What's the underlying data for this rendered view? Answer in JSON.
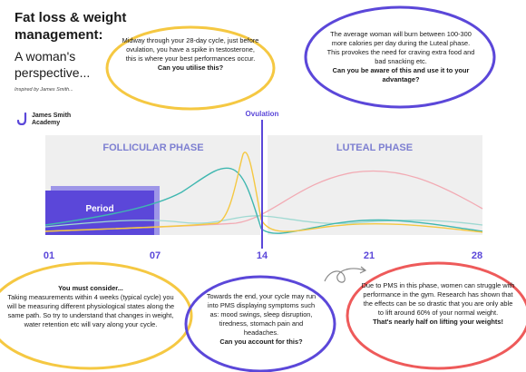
{
  "header": {
    "title_line1": "Fat loss & weight",
    "title_line2": "management:",
    "subtitle": "A woman's perspective...",
    "inspired": "Inspired by James Smith..."
  },
  "logo": {
    "line1": "James Smith",
    "line2": "Academy"
  },
  "bubbles": {
    "yellow": {
      "text": "Midway through your 28-day cycle, just before ovulation, you have a spike in testosterone, this is where your best performances occur.",
      "question": "Can you utilise this?"
    },
    "purple_top": {
      "text": "The average woman will burn between 100-300 more calories per day during the Luteal phase. This provokes the need for craving extra food and bad snacking etc.",
      "question": "Can you be aware of this and use it to your advantage?"
    },
    "yellow_bottom": {
      "heading": "You must consider...",
      "text": "Taking measurements within 4 weeks (typical cycle) you will be measuring different physiological states along the same path. So try to understand that changes in weight, water retention etc will vary along your cycle."
    },
    "purple_bottom": {
      "text": "Towards the end, your cycle may run into PMS displaying symptoms such as: mood swings, sleep disruption, tiredness, stomach pain and headaches.",
      "question": "Can you account for this?"
    },
    "red": {
      "text": "Due to PMS in this phase, women can struggle with performance in the gym. Research has shown that the effects can be so drastic that you are only able to lift around 60% of your normal weight.",
      "question": "That's nearly half on lifting your weights!"
    }
  },
  "chart": {
    "ovulation_label": "Ovulation",
    "follicular_label": "FOLLICULAR PHASE",
    "luteal_label": "LUTEAL PHASE",
    "period_label": "Period",
    "x_ticks": [
      "01",
      "07",
      "14",
      "21",
      "28"
    ],
    "colors": {
      "yellow": "#f5c842",
      "teal": "#3fb7b0",
      "light_teal": "#9fd9d2",
      "pink": "#f2aab3",
      "purple": "#5b47d9",
      "panel": "#efefef"
    }
  }
}
